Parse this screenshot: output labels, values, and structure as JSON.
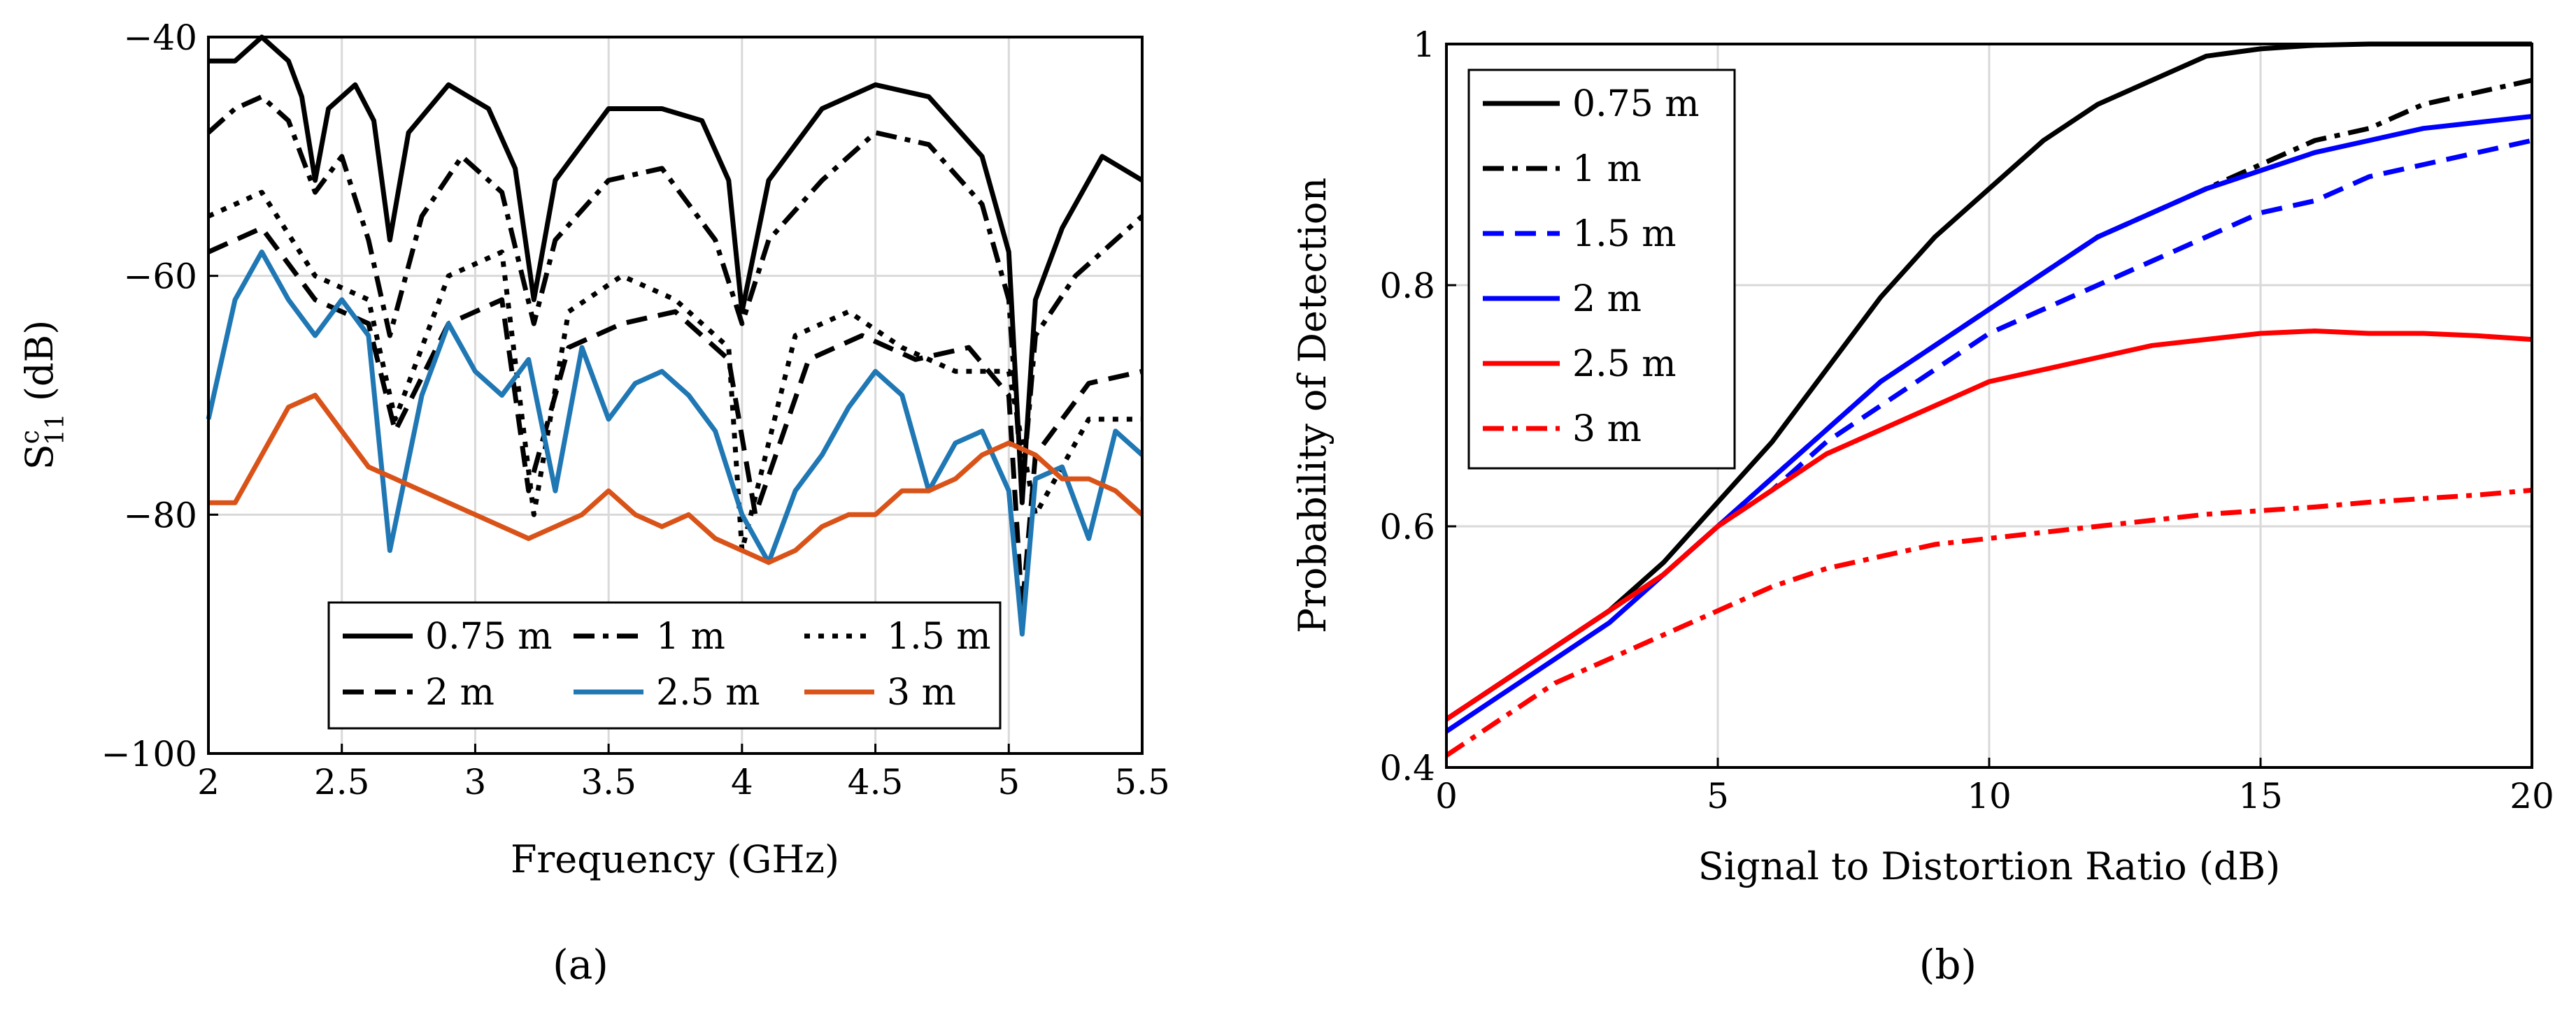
{
  "chart_data": [
    {
      "type": "line",
      "panel_label": "(a)",
      "title": "",
      "xlabel": "Frequency (GHz)",
      "ylabel": "S11 (dB)",
      "ylabel_sup": "c",
      "ylabel_sub": "11",
      "xlim": [
        2,
        5.5
      ],
      "ylim": [
        -100,
        -40
      ],
      "xticks": [
        2,
        2.5,
        3,
        3.5,
        4,
        4.5,
        5,
        5.5
      ],
      "xtick_labels": [
        "2",
        "2.5",
        "3",
        "3.5",
        "4",
        "4.5",
        "5",
        "5.5"
      ],
      "yticks": [
        -100,
        -80,
        -60,
        -40
      ],
      "ytick_labels": [
        "−100",
        "−80",
        "−60",
        "−40"
      ],
      "grid": true,
      "legend_position": "bottom-right",
      "legend_columns": 3,
      "series": [
        {
          "name": "0.75 m",
          "color": "#000000",
          "dash": "solid",
          "x": [
            2.0,
            2.1,
            2.2,
            2.3,
            2.35,
            2.4,
            2.45,
            2.55,
            2.62,
            2.68,
            2.75,
            2.9,
            3.05,
            3.15,
            3.22,
            3.3,
            3.5,
            3.7,
            3.85,
            3.95,
            4.0,
            4.1,
            4.3,
            4.5,
            4.7,
            4.9,
            5.0,
            5.05,
            5.1,
            5.2,
            5.35,
            5.5
          ],
          "y": [
            -42,
            -42,
            -40,
            -42,
            -45,
            -52,
            -46,
            -44,
            -47,
            -57,
            -48,
            -44,
            -46,
            -51,
            -62,
            -52,
            -46,
            -46,
            -47,
            -52,
            -63,
            -52,
            -46,
            -44,
            -45,
            -50,
            -58,
            -79,
            -62,
            -56,
            -50,
            -52
          ]
        },
        {
          "name": "1 m",
          "color": "#000000",
          "dash": "dashdot",
          "x": [
            2.0,
            2.1,
            2.2,
            2.3,
            2.4,
            2.5,
            2.6,
            2.68,
            2.8,
            2.95,
            3.1,
            3.22,
            3.3,
            3.5,
            3.7,
            3.9,
            4.0,
            4.1,
            4.3,
            4.5,
            4.7,
            4.9,
            5.0,
            5.05,
            5.1,
            5.25,
            5.4,
            5.5
          ],
          "y": [
            -48,
            -46,
            -45,
            -47,
            -53,
            -50,
            -57,
            -65,
            -55,
            -50,
            -53,
            -64,
            -57,
            -52,
            -51,
            -57,
            -64,
            -57,
            -52,
            -48,
            -49,
            -54,
            -62,
            -78,
            -65,
            -60,
            -57,
            -55
          ]
        },
        {
          "name": "1.5 m",
          "color": "#000000",
          "dash": "dotted",
          "x": [
            2.0,
            2.2,
            2.4,
            2.6,
            2.7,
            2.9,
            3.1,
            3.22,
            3.35,
            3.55,
            3.75,
            3.95,
            4.0,
            4.2,
            4.4,
            4.6,
            4.8,
            5.0,
            5.1,
            5.3,
            5.5
          ],
          "y": [
            -55,
            -53,
            -60,
            -62,
            -72,
            -60,
            -58,
            -80,
            -63,
            -60,
            -62,
            -66,
            -83,
            -65,
            -63,
            -66,
            -68,
            -68,
            -80,
            -72,
            -72
          ]
        },
        {
          "name": "2 m",
          "color": "#000000",
          "dash": "dashed",
          "x": [
            2.0,
            2.2,
            2.4,
            2.6,
            2.7,
            2.9,
            3.1,
            3.2,
            3.35,
            3.55,
            3.75,
            3.95,
            4.05,
            4.25,
            4.45,
            4.65,
            4.85,
            5.0,
            5.05,
            5.1,
            5.3,
            5.5
          ],
          "y": [
            -58,
            -56,
            -62,
            -64,
            -73,
            -64,
            -62,
            -78,
            -66,
            -64,
            -63,
            -67,
            -80,
            -67,
            -65,
            -67,
            -66,
            -70,
            -88,
            -75,
            -69,
            -68
          ]
        },
        {
          "name": "2.5 m",
          "color": "#1f77b4",
          "dash": "solid",
          "x": [
            2.0,
            2.1,
            2.2,
            2.3,
            2.4,
            2.5,
            2.6,
            2.68,
            2.8,
            2.9,
            3.0,
            3.1,
            3.2,
            3.3,
            3.4,
            3.5,
            3.6,
            3.7,
            3.8,
            3.9,
            4.0,
            4.1,
            4.2,
            4.3,
            4.4,
            4.5,
            4.6,
            4.7,
            4.8,
            4.9,
            5.0,
            5.05,
            5.1,
            5.2,
            5.3,
            5.4,
            5.5
          ],
          "y": [
            -72,
            -62,
            -58,
            -62,
            -65,
            -62,
            -65,
            -83,
            -70,
            -64,
            -68,
            -70,
            -67,
            -78,
            -66,
            -72,
            -69,
            -68,
            -70,
            -73,
            -80,
            -84,
            -78,
            -75,
            -71,
            -68,
            -70,
            -78,
            -74,
            -73,
            -78,
            -90,
            -77,
            -76,
            -82,
            -73,
            -75
          ]
        },
        {
          "name": "3 m",
          "color": "#d95319",
          "dash": "solid",
          "x": [
            2.0,
            2.1,
            2.2,
            2.3,
            2.4,
            2.5,
            2.6,
            2.7,
            2.8,
            2.9,
            3.0,
            3.1,
            3.2,
            3.3,
            3.4,
            3.5,
            3.6,
            3.7,
            3.8,
            3.9,
            4.0,
            4.1,
            4.2,
            4.3,
            4.4,
            4.5,
            4.6,
            4.7,
            4.8,
            4.9,
            5.0,
            5.1,
            5.2,
            5.3,
            5.4,
            5.5
          ],
          "y": [
            -79,
            -79,
            -75,
            -71,
            -70,
            -73,
            -76,
            -77,
            -78,
            -79,
            -80,
            -81,
            -82,
            -81,
            -80,
            -78,
            -80,
            -81,
            -80,
            -82,
            -83,
            -84,
            -83,
            -81,
            -80,
            -80,
            -78,
            -78,
            -77,
            -75,
            -74,
            -75,
            -77,
            -77,
            -78,
            -80
          ]
        }
      ],
      "legend": [
        "0.75 m",
        "1 m",
        "1.5 m",
        "2 m",
        "2.5 m",
        "3 m"
      ]
    },
    {
      "type": "line",
      "panel_label": "(b)",
      "title": "",
      "xlabel": "Signal to Distortion Ratio (dB)",
      "ylabel": "Probability of Detection",
      "xlim": [
        0,
        20
      ],
      "ylim": [
        0.4,
        1
      ],
      "xticks": [
        0,
        5,
        10,
        15,
        20
      ],
      "xtick_labels": [
        "0",
        "5",
        "10",
        "15",
        "20"
      ],
      "yticks": [
        0.4,
        0.6,
        0.8,
        1
      ],
      "ytick_labels": [
        "0.4",
        "0.6",
        "0.8",
        "1"
      ],
      "grid": true,
      "legend_position": "top-left",
      "legend_columns": 1,
      "series": [
        {
          "name": "0.75 m",
          "color": "#000000",
          "dash": "solid",
          "x": [
            0,
            1,
            2,
            3,
            4,
            5,
            6,
            7,
            8,
            9,
            10,
            11,
            12,
            13,
            14,
            15,
            16,
            17,
            18,
            19,
            20
          ],
          "y": [
            0.44,
            0.47,
            0.5,
            0.53,
            0.57,
            0.62,
            0.67,
            0.73,
            0.79,
            0.84,
            0.88,
            0.92,
            0.95,
            0.97,
            0.99,
            0.996,
            0.999,
            1.0,
            1.0,
            1.0,
            1.0
          ]
        },
        {
          "name": "1 m",
          "color": "#000000",
          "dash": "dashdot",
          "x": [
            0,
            1,
            2,
            3,
            4,
            5,
            6,
            7,
            8,
            9,
            10,
            11,
            12,
            13,
            14,
            15,
            16,
            17,
            18,
            19,
            20
          ],
          "y": [
            0.44,
            0.47,
            0.5,
            0.53,
            0.56,
            0.6,
            0.64,
            0.68,
            0.72,
            0.75,
            0.78,
            0.81,
            0.84,
            0.86,
            0.88,
            0.9,
            0.92,
            0.93,
            0.95,
            0.96,
            0.97
          ]
        },
        {
          "name": "1.5 m",
          "color": "#0000ff",
          "dash": "dashed",
          "x": [
            0,
            1,
            2,
            3,
            4,
            5,
            6,
            7,
            8,
            9,
            10,
            11,
            12,
            13,
            14,
            15,
            16,
            17,
            18,
            19,
            20
          ],
          "y": [
            0.44,
            0.47,
            0.5,
            0.53,
            0.56,
            0.6,
            0.63,
            0.67,
            0.7,
            0.73,
            0.76,
            0.78,
            0.8,
            0.82,
            0.84,
            0.86,
            0.87,
            0.89,
            0.9,
            0.91,
            0.92
          ]
        },
        {
          "name": "2 m",
          "color": "#0000ff",
          "dash": "solid",
          "x": [
            0,
            1,
            2,
            3,
            4,
            5,
            6,
            7,
            8,
            9,
            10,
            11,
            12,
            13,
            14,
            15,
            16,
            17,
            18,
            19,
            20
          ],
          "y": [
            0.43,
            0.46,
            0.49,
            0.52,
            0.56,
            0.6,
            0.64,
            0.68,
            0.72,
            0.75,
            0.78,
            0.81,
            0.84,
            0.86,
            0.88,
            0.895,
            0.91,
            0.92,
            0.93,
            0.935,
            0.94
          ]
        },
        {
          "name": "2.5 m",
          "color": "#ff0000",
          "dash": "solid",
          "x": [
            0,
            1,
            2,
            3,
            4,
            5,
            6,
            7,
            8,
            9,
            10,
            11,
            12,
            13,
            14,
            15,
            16,
            17,
            18,
            19,
            20
          ],
          "y": [
            0.44,
            0.47,
            0.5,
            0.53,
            0.56,
            0.6,
            0.63,
            0.66,
            0.68,
            0.7,
            0.72,
            0.73,
            0.74,
            0.75,
            0.755,
            0.76,
            0.762,
            0.76,
            0.76,
            0.758,
            0.755
          ]
        },
        {
          "name": "3 m",
          "color": "#ff0000",
          "dash": "dashdot",
          "x": [
            0,
            1,
            2,
            3,
            4,
            5,
            6,
            7,
            8,
            9,
            10,
            11,
            12,
            13,
            14,
            15,
            16,
            17,
            18,
            19,
            20
          ],
          "y": [
            0.41,
            0.44,
            0.47,
            0.49,
            0.51,
            0.53,
            0.55,
            0.565,
            0.575,
            0.585,
            0.59,
            0.595,
            0.6,
            0.605,
            0.61,
            0.613,
            0.616,
            0.62,
            0.623,
            0.626,
            0.63
          ]
        }
      ],
      "legend": [
        "0.75 m",
        "1 m",
        "1.5 m",
        "2 m",
        "2.5 m",
        "3 m"
      ]
    }
  ]
}
